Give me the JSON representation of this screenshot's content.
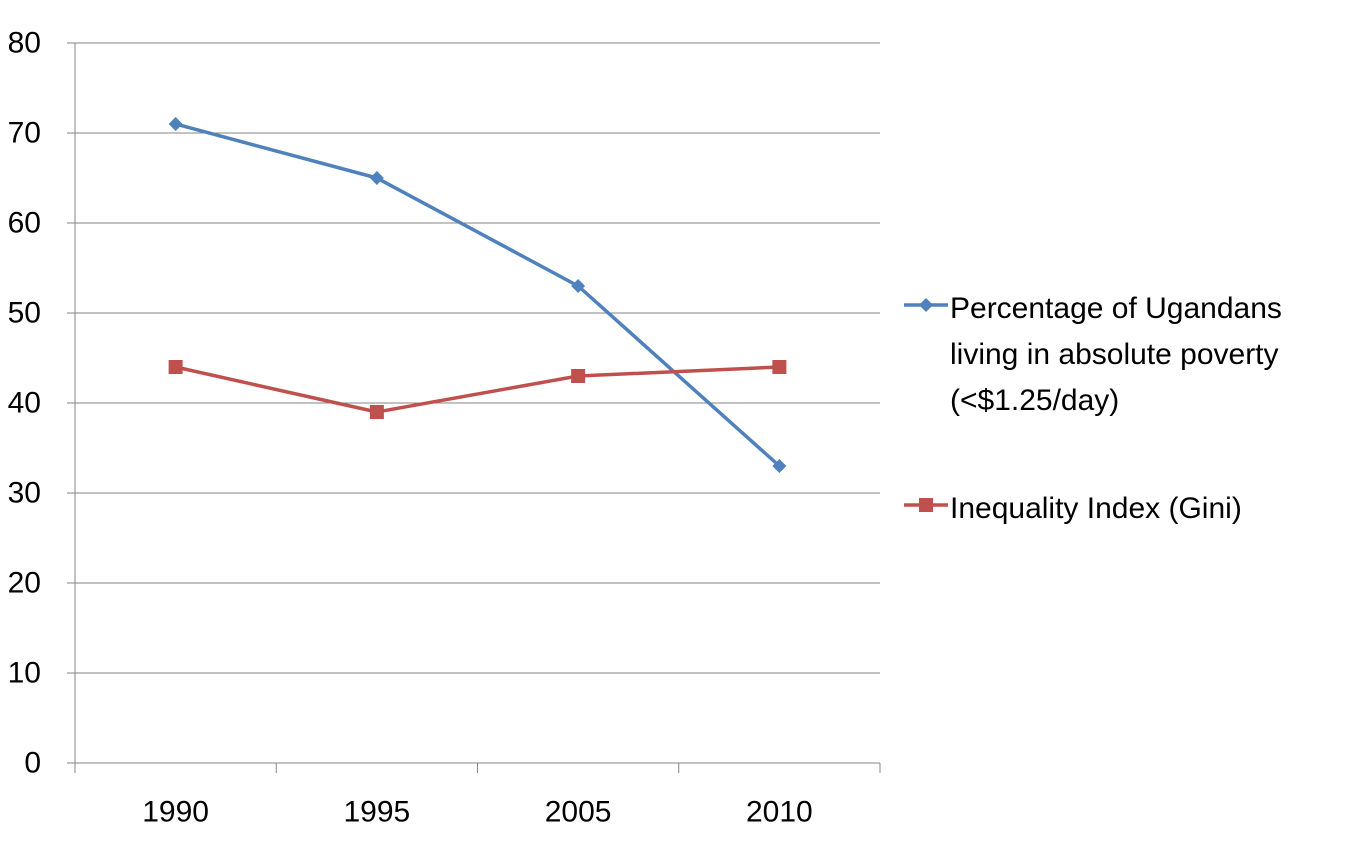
{
  "chart_data": {
    "type": "line",
    "categories": [
      "1990",
      "1995",
      "2005",
      "2010"
    ],
    "series": [
      {
        "name": "Percentage of Ugandans living in absolute poverty (<$1.25/day)",
        "label_lines": [
          "Percentage of Ugandans",
          "living in absolute poverty",
          "(<$1.25/day)"
        ],
        "values": [
          71,
          65,
          53,
          33
        ],
        "color": "#4F81BD",
        "marker": "diamond"
      },
      {
        "name": "Inequality Index (Gini)",
        "label_lines": [
          "Inequality Index (Gini)"
        ],
        "values": [
          44,
          39,
          43,
          44
        ],
        "color": "#C0504D",
        "marker": "square"
      }
    ],
    "title": "",
    "xlabel": "",
    "ylabel": "",
    "ylim": [
      0,
      80
    ],
    "yticks": [
      "0",
      "10",
      "20",
      "30",
      "40",
      "50",
      "60",
      "70",
      "80"
    ],
    "grid": true,
    "legend_position": "right"
  }
}
